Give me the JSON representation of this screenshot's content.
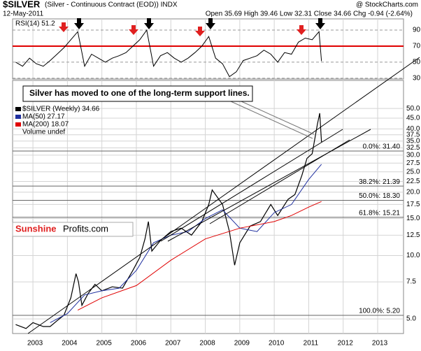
{
  "chart_data": {
    "type": "line",
    "title": "$SILVER",
    "subtitle": "(Silver - Continuous Contract (EOD)) INDX",
    "date": "12-May-2011",
    "quote": "Open 35.69 High 39.46 Low 32.31 Close 34.66 Chg -0.94 (-2.64%)",
    "credit": "@ StockCharts.com",
    "annotation": "Silver has moved to one of the long-term support lines.",
    "logo": [
      "Sunshine",
      "Profits.com"
    ],
    "legend_extra": "Volume undef",
    "log_scale": true,
    "xlim": [
      2002.41,
      2013.75
    ],
    "xticks": [
      2003,
      2004,
      2005,
      2006,
      2007,
      2008,
      2009,
      2010,
      2011,
      2012,
      2013
    ],
    "ylim": [
      4.26,
      68
    ],
    "yticks": [
      {
        "value": 5,
        "label": "5.0"
      },
      7.5,
      {
        "value": 10,
        "label": "10.0"
      },
      12.5,
      {
        "value": 15,
        "label": "15.0"
      },
      17.5,
      {
        "value": 20,
        "label": "20.0"
      },
      22.5,
      {
        "value": 25,
        "label": "25.0"
      },
      27.5,
      {
        "value": 30,
        "label": "30.0"
      },
      32.5,
      {
        "value": 35,
        "label": "35.0"
      },
      37.5,
      {
        "value": 40,
        "label": "40.0"
      },
      {
        "value": 45,
        "label": "45.0"
      },
      {
        "value": 50,
        "label": "50.0"
      }
    ],
    "grid": true,
    "series": [
      {
        "name": "$SILVER (Weekly) 34.66",
        "color": "#000000",
        "x": [
          2002.5,
          2002.8,
          2003.0,
          2003.3,
          2003.5,
          2003.7,
          2003.9,
          2004.1,
          2004.25,
          2004.32,
          2004.42,
          2004.6,
          2004.8,
          2005.0,
          2005.3,
          2005.6,
          2005.9,
          2006.1,
          2006.25,
          2006.35,
          2006.45,
          2006.7,
          2007.0,
          2007.3,
          2007.6,
          2007.9,
          2008.1,
          2008.2,
          2008.5,
          2008.7,
          2008.85,
          2009.0,
          2009.3,
          2009.6,
          2009.9,
          2010.1,
          2010.4,
          2010.6,
          2010.8,
          2010.95,
          2011.1,
          2011.25,
          2011.32,
          2011.37
        ],
        "values": [
          4.7,
          4.5,
          4.8,
          4.6,
          4.6,
          4.9,
          5.2,
          6.3,
          8.2,
          7.5,
          5.8,
          6.6,
          7.3,
          6.8,
          7.1,
          7.0,
          8.5,
          9.8,
          12.0,
          14.5,
          10.5,
          11.8,
          13.0,
          13.5,
          12.5,
          14.5,
          17.5,
          20.5,
          17.5,
          13.0,
          9.0,
          11.5,
          13.8,
          14.5,
          17.5,
          15.5,
          18.5,
          19.5,
          24.0,
          29.0,
          30.5,
          42.0,
          47.5,
          34.66
        ]
      },
      {
        "name": "MA(50) 27.17",
        "color": "#1f2f9f",
        "x": [
          2003.5,
          2004.0,
          2004.5,
          2005.0,
          2005.5,
          2006.0,
          2006.5,
          2007.0,
          2007.5,
          2008.0,
          2008.5,
          2009.0,
          2009.5,
          2010.0,
          2010.5,
          2011.0,
          2011.37
        ],
        "values": [
          4.8,
          5.3,
          6.5,
          6.8,
          7.0,
          8.5,
          11.5,
          12.5,
          13.0,
          15.0,
          16.5,
          13.5,
          13.0,
          16.0,
          17.5,
          23.0,
          27.17
        ]
      },
      {
        "name": "MA(200) 18.07",
        "color": "#e00000",
        "x": [
          2004.3,
          2005.0,
          2006.0,
          2007.0,
          2008.0,
          2009.0,
          2010.0,
          2010.5,
          2011.0,
          2011.37
        ],
        "values": [
          5.5,
          6.3,
          7.2,
          9.5,
          12.0,
          13.5,
          14.5,
          15.5,
          17.0,
          18.07
        ]
      }
    ],
    "fib_levels": [
      {
        "label": "0.0%: 31.40",
        "value": 31.4
      },
      {
        "label": "38.2%: 21.39",
        "value": 21.39
      },
      {
        "label": "50.0%: 18.30",
        "value": 18.3
      },
      {
        "label": "61.8%: 15.21",
        "value": 15.21
      },
      {
        "label": "100.0%: 5.20",
        "value": 5.2
      }
    ],
    "rsi": {
      "label": "RSI(14) 51.2",
      "ylim": [
        29,
        104
      ],
      "yticks": [
        90,
        70,
        50,
        30
      ],
      "threshold": 70,
      "color": "#000000",
      "x": [
        2002.5,
        2002.7,
        2002.9,
        2003.1,
        2003.3,
        2003.5,
        2003.7,
        2003.9,
        2004.1,
        2004.3,
        2004.5,
        2004.7,
        2004.9,
        2005.1,
        2005.3,
        2005.5,
        2005.7,
        2005.9,
        2006.1,
        2006.3,
        2006.5,
        2006.7,
        2006.9,
        2007.1,
        2007.3,
        2007.5,
        2007.7,
        2007.9,
        2008.1,
        2008.3,
        2008.5,
        2008.7,
        2008.9,
        2009.1,
        2009.3,
        2009.5,
        2009.7,
        2009.9,
        2010.1,
        2010.3,
        2010.5,
        2010.7,
        2010.9,
        2011.1,
        2011.3,
        2011.37
      ],
      "values": [
        50,
        45,
        55,
        48,
        45,
        52,
        60,
        68,
        78,
        88,
        45,
        60,
        55,
        50,
        55,
        58,
        62,
        70,
        78,
        90,
        45,
        58,
        62,
        55,
        50,
        55,
        62,
        70,
        82,
        55,
        48,
        32,
        38,
        52,
        55,
        58,
        65,
        60,
        50,
        62,
        60,
        75,
        80,
        78,
        88,
        51.2
      ]
    }
  }
}
